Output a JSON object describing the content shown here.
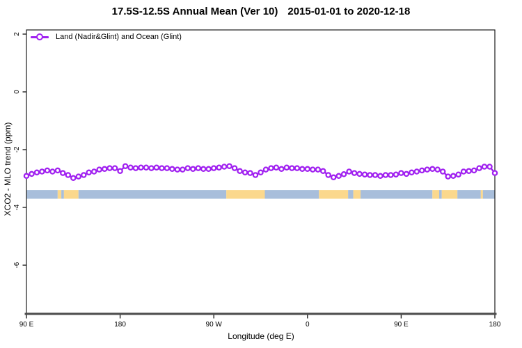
{
  "title": {
    "region": "17.5S-12.5S Annual Mean (Ver 10)",
    "dates": "2015-01-01 to 2020-12-18"
  },
  "legend": {
    "label": "Land (Nadir&Glint) and Ocean (Glint)"
  },
  "colors": {
    "series": "#a020f0",
    "marker_fill": "#ffffff",
    "ocean": "#a8bedb",
    "land": "#fbd88d",
    "axis_box": "#1a1a1a",
    "axis_heavy": "#4d4d4d",
    "text": "#000000"
  },
  "chart_data": {
    "type": "line",
    "title": "17.5S-12.5S Annual Mean (Ver 10)   2015-01-01 to 2020-12-18",
    "xlabel": "Longitude (deg E)",
    "ylabel": "XCO2 - MLO trend (ppm)",
    "grid": false,
    "legend_position": "top-left",
    "x_plot_range_deg": [
      90,
      540
    ],
    "ylim": [
      -7.7,
      2.2
    ],
    "y_ticks": [
      2,
      0,
      -2,
      -4,
      -6
    ],
    "x_ticks": [
      {
        "deg": 90,
        "label": "90 E"
      },
      {
        "deg": 180,
        "label": "180"
      },
      {
        "deg": 270,
        "label": "90 W"
      },
      {
        "deg": 360,
        "label": "0"
      },
      {
        "deg": 450,
        "label": "90 E"
      },
      {
        "deg": 540,
        "label": "180"
      }
    ],
    "series": [
      {
        "name": "Land (Nadir&Glint) and Ocean (Glint)",
        "marker": "open-circle",
        "x_start_deg": 90,
        "x_step_deg": 5,
        "values": [
          -2.91,
          -2.84,
          -2.79,
          -2.76,
          -2.72,
          -2.76,
          -2.72,
          -2.81,
          -2.88,
          -2.98,
          -2.93,
          -2.88,
          -2.79,
          -2.76,
          -2.69,
          -2.67,
          -2.64,
          -2.64,
          -2.74,
          -2.57,
          -2.62,
          -2.64,
          -2.62,
          -2.62,
          -2.64,
          -2.62,
          -2.64,
          -2.64,
          -2.67,
          -2.69,
          -2.69,
          -2.64,
          -2.67,
          -2.64,
          -2.67,
          -2.67,
          -2.64,
          -2.62,
          -2.59,
          -2.57,
          -2.64,
          -2.74,
          -2.79,
          -2.81,
          -2.88,
          -2.79,
          -2.69,
          -2.64,
          -2.62,
          -2.67,
          -2.62,
          -2.64,
          -2.64,
          -2.67,
          -2.67,
          -2.69,
          -2.69,
          -2.74,
          -2.88,
          -2.96,
          -2.91,
          -2.85,
          -2.76,
          -2.81,
          -2.84,
          -2.86,
          -2.88,
          -2.88,
          -2.91,
          -2.88,
          -2.88,
          -2.86,
          -2.81,
          -2.84,
          -2.79,
          -2.76,
          -2.72,
          -2.69,
          -2.67,
          -2.69,
          -2.76,
          -2.93,
          -2.91,
          -2.86,
          -2.76,
          -2.74,
          -2.72,
          -2.64,
          -2.59,
          -2.59,
          -2.81
        ]
      }
    ],
    "map_band": {
      "description": "land/ocean surface strip for latitude band",
      "value_top": -3.4,
      "value_bottom": -3.7,
      "segments": [
        {
          "from": 90,
          "to": 120,
          "type": "ocean"
        },
        {
          "from": 120,
          "to": 123.5,
          "type": "land"
        },
        {
          "from": 123.5,
          "to": 126,
          "type": "ocean"
        },
        {
          "from": 126,
          "to": 140,
          "type": "land"
        },
        {
          "from": 140,
          "to": 282,
          "type": "ocean"
        },
        {
          "from": 282,
          "to": 319,
          "type": "land"
        },
        {
          "from": 319,
          "to": 371,
          "type": "ocean"
        },
        {
          "from": 371,
          "to": 399,
          "type": "land"
        },
        {
          "from": 399,
          "to": 404,
          "type": "ocean"
        },
        {
          "from": 404,
          "to": 411,
          "type": "land"
        },
        {
          "from": 411,
          "to": 480,
          "type": "ocean"
        },
        {
          "from": 480,
          "to": 486.5,
          "type": "land"
        },
        {
          "from": 486.5,
          "to": 489,
          "type": "ocean"
        },
        {
          "from": 489,
          "to": 504,
          "type": "land"
        },
        {
          "from": 504,
          "to": 526.5,
          "type": "ocean"
        },
        {
          "from": 526.5,
          "to": 528.5,
          "type": "land"
        },
        {
          "from": 528.5,
          "to": 540,
          "type": "ocean"
        }
      ]
    }
  }
}
